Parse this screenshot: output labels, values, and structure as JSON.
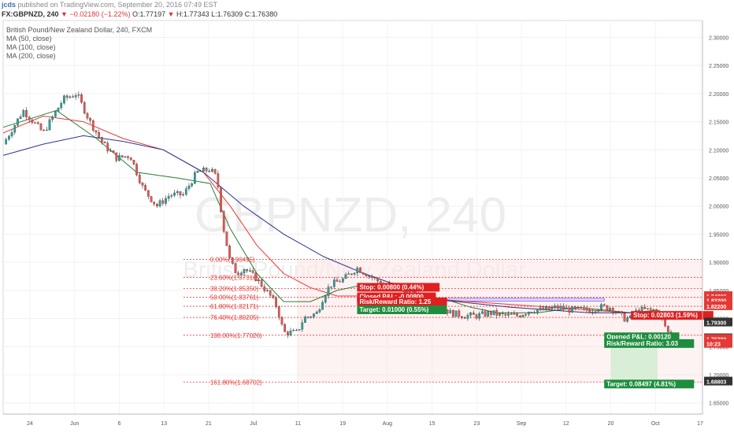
{
  "header": {
    "author": "jcds",
    "published": "published on TradingView.com, September 20, 2016 07:49 EST",
    "symbol": "FX:GBPNZD, 240",
    "change_arrow": "▼",
    "change": "−0.02180 (−1.22%)",
    "open": "O:1.77197",
    "high_down": "▼",
    "high": "H:1.77343",
    "low": "L:1.76309",
    "close": "C:1.76380"
  },
  "indicators": {
    "title": "British Pound/New Zealand Dollar, 240, FXCM",
    "ma50": "MA (50, close)",
    "ma100": "MA (100, close)",
    "ma200": "MA (200, close)"
  },
  "watermark": {
    "symbol": "GBPNZD, 240",
    "name": "British Pound/New Zealand Dollar"
  },
  "colors": {
    "up": "#26a69a",
    "down": "#ef5350",
    "ma50": "#2e7d32",
    "ma100": "#e53935",
    "ma200": "#283593",
    "fib": "#e53935",
    "target_bg": "#1e8e3e",
    "stop_bg": "#e01f1f",
    "last_price": "#e53935"
  },
  "chart_data": {
    "type": "candlestick",
    "ylim": [
      1.63,
      2.33
    ],
    "y_ticks": [
      "2.30000",
      "2.25000",
      "2.20000",
      "2.15000",
      "2.10000",
      "2.05000",
      "2.00000",
      "1.95000",
      "1.90000",
      "1.85000",
      "1.80000",
      "1.75000",
      "1.70000",
      "1.65000"
    ],
    "x_ticks": [
      "24",
      "Jun",
      "6",
      "13",
      "21",
      "Jul",
      "11",
      "19",
      "Aug",
      "15",
      "23",
      "Sep",
      "12",
      "20",
      "Oct",
      "17"
    ],
    "price_path": [
      [
        0,
        2.11
      ],
      [
        3,
        2.17
      ],
      [
        6,
        2.13
      ],
      [
        9,
        2.19
      ],
      [
        11,
        2.2
      ],
      [
        13,
        2.15
      ],
      [
        15,
        2.11
      ],
      [
        17,
        2.085
      ],
      [
        19,
        2.09
      ],
      [
        21,
        2.03
      ],
      [
        23,
        2.0
      ],
      [
        25,
        2.02
      ],
      [
        27,
        2.02
      ],
      [
        29,
        2.06
      ],
      [
        31,
        2.065
      ],
      [
        32,
        2.05
      ],
      [
        33,
        1.96
      ],
      [
        34,
        1.9
      ],
      [
        35,
        1.88
      ],
      [
        36,
        1.89
      ],
      [
        38,
        1.87
      ],
      [
        40,
        1.84
      ],
      [
        41,
        1.82
      ],
      [
        42,
        1.775
      ],
      [
        44,
        1.775
      ],
      [
        45,
        1.8
      ],
      [
        47,
        1.81
      ],
      [
        48,
        1.84
      ],
      [
        49,
        1.86
      ],
      [
        51,
        1.87
      ],
      [
        53,
        1.89
      ],
      [
        55,
        1.875
      ],
      [
        57,
        1.86
      ],
      [
        59,
        1.86
      ],
      [
        61,
        1.845
      ],
      [
        63,
        1.835
      ],
      [
        65,
        1.825
      ],
      [
        67,
        1.81
      ],
      [
        69,
        1.805
      ],
      [
        71,
        1.805
      ],
      [
        73,
        1.81
      ],
      [
        75,
        1.805
      ],
      [
        77,
        1.805
      ],
      [
        79,
        1.815
      ],
      [
        81,
        1.815
      ],
      [
        83,
        1.82
      ],
      [
        85,
        1.815
      ],
      [
        87,
        1.815
      ],
      [
        88,
        1.815
      ],
      [
        89,
        1.82
      ],
      [
        91,
        1.82
      ],
      [
        93,
        1.8
      ],
      [
        94,
        1.8
      ],
      [
        95,
        1.815
      ],
      [
        97,
        1.815
      ],
      [
        98,
        1.815
      ],
      [
        99,
        1.79
      ],
      [
        100,
        1.7638
      ]
    ],
    "moving_averages": [
      {
        "name": "MA (50, close)",
        "points": [
          [
            0,
            2.14
          ],
          [
            8,
            2.17
          ],
          [
            14,
            2.12
          ],
          [
            20,
            2.06
          ],
          [
            26,
            2.05
          ],
          [
            31,
            2.04
          ],
          [
            34,
            1.96
          ],
          [
            38,
            1.88
          ],
          [
            42,
            1.83
          ],
          [
            46,
            1.83
          ],
          [
            50,
            1.85
          ],
          [
            54,
            1.86
          ],
          [
            58,
            1.855
          ],
          [
            62,
            1.84
          ],
          [
            66,
            1.835
          ],
          [
            70,
            1.82
          ],
          [
            74,
            1.81
          ],
          [
            80,
            1.81
          ],
          [
            86,
            1.82
          ],
          [
            90,
            1.815
          ],
          [
            94,
            1.81
          ],
          [
            98,
            1.815
          ],
          [
            100,
            1.8
          ]
        ]
      },
      {
        "name": "MA (100, close)",
        "points": [
          [
            0,
            2.13
          ],
          [
            6,
            2.16
          ],
          [
            12,
            2.15
          ],
          [
            18,
            2.12
          ],
          [
            24,
            2.1
          ],
          [
            30,
            2.06
          ],
          [
            34,
            2.0
          ],
          [
            38,
            1.93
          ],
          [
            42,
            1.88
          ],
          [
            46,
            1.855
          ],
          [
            50,
            1.84
          ],
          [
            55,
            1.84
          ],
          [
            60,
            1.84
          ],
          [
            64,
            1.835
          ],
          [
            70,
            1.83
          ],
          [
            76,
            1.825
          ],
          [
            82,
            1.82
          ],
          [
            88,
            1.815
          ],
          [
            94,
            1.81
          ],
          [
            100,
            1.805
          ]
        ]
      },
      {
        "name": "MA (200, close)",
        "points": [
          [
            0,
            2.09
          ],
          [
            6,
            2.11
          ],
          [
            12,
            2.125
          ],
          [
            18,
            2.115
          ],
          [
            24,
            2.1
          ],
          [
            30,
            2.06
          ],
          [
            36,
            2.0
          ],
          [
            42,
            1.95
          ],
          [
            48,
            1.91
          ],
          [
            54,
            1.88
          ],
          [
            60,
            1.855
          ],
          [
            64,
            1.835
          ],
          [
            68,
            1.83
          ],
          [
            72,
            1.825
          ],
          [
            76,
            1.82
          ],
          [
            82,
            1.815
          ],
          [
            88,
            1.81
          ],
          [
            94,
            1.81
          ],
          [
            100,
            1.805
          ]
        ]
      }
    ],
    "fib_levels": [
      {
        "label": "0.00%(1.90495)",
        "value": 1.90495
      },
      {
        "label": "23.60%(1.87316)",
        "value": 1.87316
      },
      {
        "label": "38.20%(1.85350)",
        "value": 1.8535
      },
      {
        "label": "50.00%(1.83761)",
        "value": 1.83761
      },
      {
        "label": "61.80%(1.82171)",
        "value": 1.82171
      },
      {
        "label": "76.40%(1.80205)",
        "value": 1.80205
      },
      {
        "label": "100.00%(1.77026)",
        "value": 1.77026
      },
      {
        "label": "161.80%(1.68702)",
        "value": 1.68702
      }
    ],
    "price_tags": [
      {
        "label": "1.84000",
        "value": 1.84,
        "kind": "line"
      },
      {
        "label": "1.83200",
        "value": 1.832,
        "kind": "line"
      },
      {
        "label": "1.82200",
        "value": 1.822,
        "kind": "line"
      },
      {
        "label": "1.79300",
        "value": 1.793,
        "kind": "line"
      },
      {
        "label": "1.76500",
        "value": 1.765,
        "kind": "line"
      },
      {
        "label": "1.76380",
        "value": 1.7638,
        "kind": "last"
      },
      {
        "label": "10:23",
        "value": 1.755,
        "kind": "last"
      },
      {
        "label": "1.68803",
        "value": 1.68803,
        "kind": "line"
      }
    ],
    "trades": [
      {
        "text": "Stop: 0.00800 (0.44%)",
        "kind": "stop",
        "x": 53,
        "y": 1.852
      },
      {
        "text": "Closed P&L: -0.00800",
        "kind": "stop",
        "x": 53,
        "y": 1.835
      },
      {
        "text": "Risk/Reward Ratio: 1.25",
        "kind": "stop",
        "x": 53,
        "y": 1.826
      },
      {
        "text": "Target: 0.01000 (0.55%)",
        "kind": "target",
        "x": 53,
        "y": 1.812
      },
      {
        "text": "Stop: 0.02803 (1.59%)",
        "kind": "stop",
        "x": 94,
        "y": 1.802
      },
      {
        "text": "Opened P&L: 0.00120",
        "kind": "target",
        "x": 90,
        "y": 1.764
      },
      {
        "text": "Risk/Reward Ratio: 3.03",
        "kind": "target",
        "x": 90,
        "y": 1.752
      },
      {
        "text": "Target: 0.08497 (4.81%)",
        "kind": "target",
        "x": 90,
        "y": 1.68
      }
    ]
  }
}
